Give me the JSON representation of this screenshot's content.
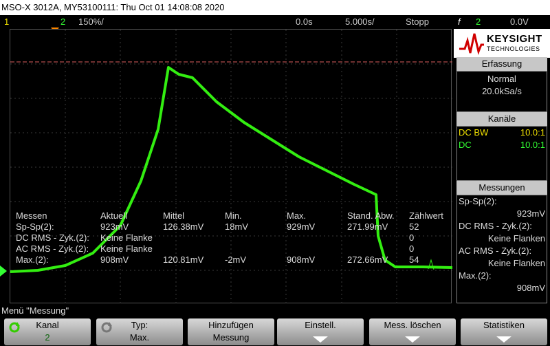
{
  "title": "MSO-X 3012A, MY53100111: Thu Oct 01 14:08:08 2020",
  "topbar": {
    "ch1": "1",
    "ch2": "2",
    "scale": "150%/",
    "delay": "0.0s",
    "timebase": "5.000s/",
    "run_state": "Stopp",
    "trigger_symbol": "f",
    "trigger_channel": "2",
    "trigger_level": "0.0V"
  },
  "colors": {
    "ch1": "#f0e000",
    "ch2": "#33ff33",
    "trace": "#33ee11",
    "brand_red": "#d00000"
  },
  "panel": {
    "brand": "KEYSIGHT",
    "brand_sub": "TECHNOLOGIES",
    "acq_title": "Erfassung",
    "acq_mode": "Normal",
    "acq_rate": "20.0kSa/s",
    "chan_title": "Kanäle",
    "chan1_label": "DC BW",
    "chan1_value": "10.0:1",
    "chan2_label": "DC",
    "chan2_value": "10.0:1",
    "meas_title": "Messungen",
    "meas": [
      {
        "name": "Sp-Sp(2):",
        "value": "923mV"
      },
      {
        "name": "DC RMS - Zyk.(2):",
        "value": "Keine Flanken"
      },
      {
        "name": "AC RMS - Zyk.(2):",
        "value": "Keine Flanken"
      },
      {
        "name": "Max.(2):",
        "value": "908mV"
      }
    ]
  },
  "stats": {
    "headers": [
      "Messen",
      "Aktuell",
      "Mittel",
      "Min.",
      "Max.",
      "Stand. Abw.",
      "Zählwert"
    ],
    "rows": [
      [
        "Sp-Sp(2):",
        "923mV",
        "126.38mV",
        "18mV",
        "929mV",
        "271.99mV",
        "52"
      ],
      [
        "DC RMS - Zyk.(2):",
        "Keine Flanke",
        "",
        "",
        "",
        "",
        "0"
      ],
      [
        "AC RMS - Zyk.(2):",
        "Keine Flanke",
        "",
        "",
        "",
        "",
        "0"
      ],
      [
        "Max.(2):",
        "908mV",
        "120.81mV",
        "-2mV",
        "908mV",
        "272.66mV",
        "54"
      ]
    ]
  },
  "menu_label": "Menü \"Messung\"",
  "softkeys": [
    {
      "line1": "Kanal",
      "line2": "2"
    },
    {
      "line1": "Typ:",
      "line2": "Max."
    },
    {
      "line1": "Hinzufügen",
      "line2": "Messung"
    },
    {
      "line1": "Einstell.",
      "line2": ""
    },
    {
      "line1": "Mess. löschen",
      "line2": ""
    },
    {
      "line1": "Statistiken",
      "line2": ""
    }
  ]
}
